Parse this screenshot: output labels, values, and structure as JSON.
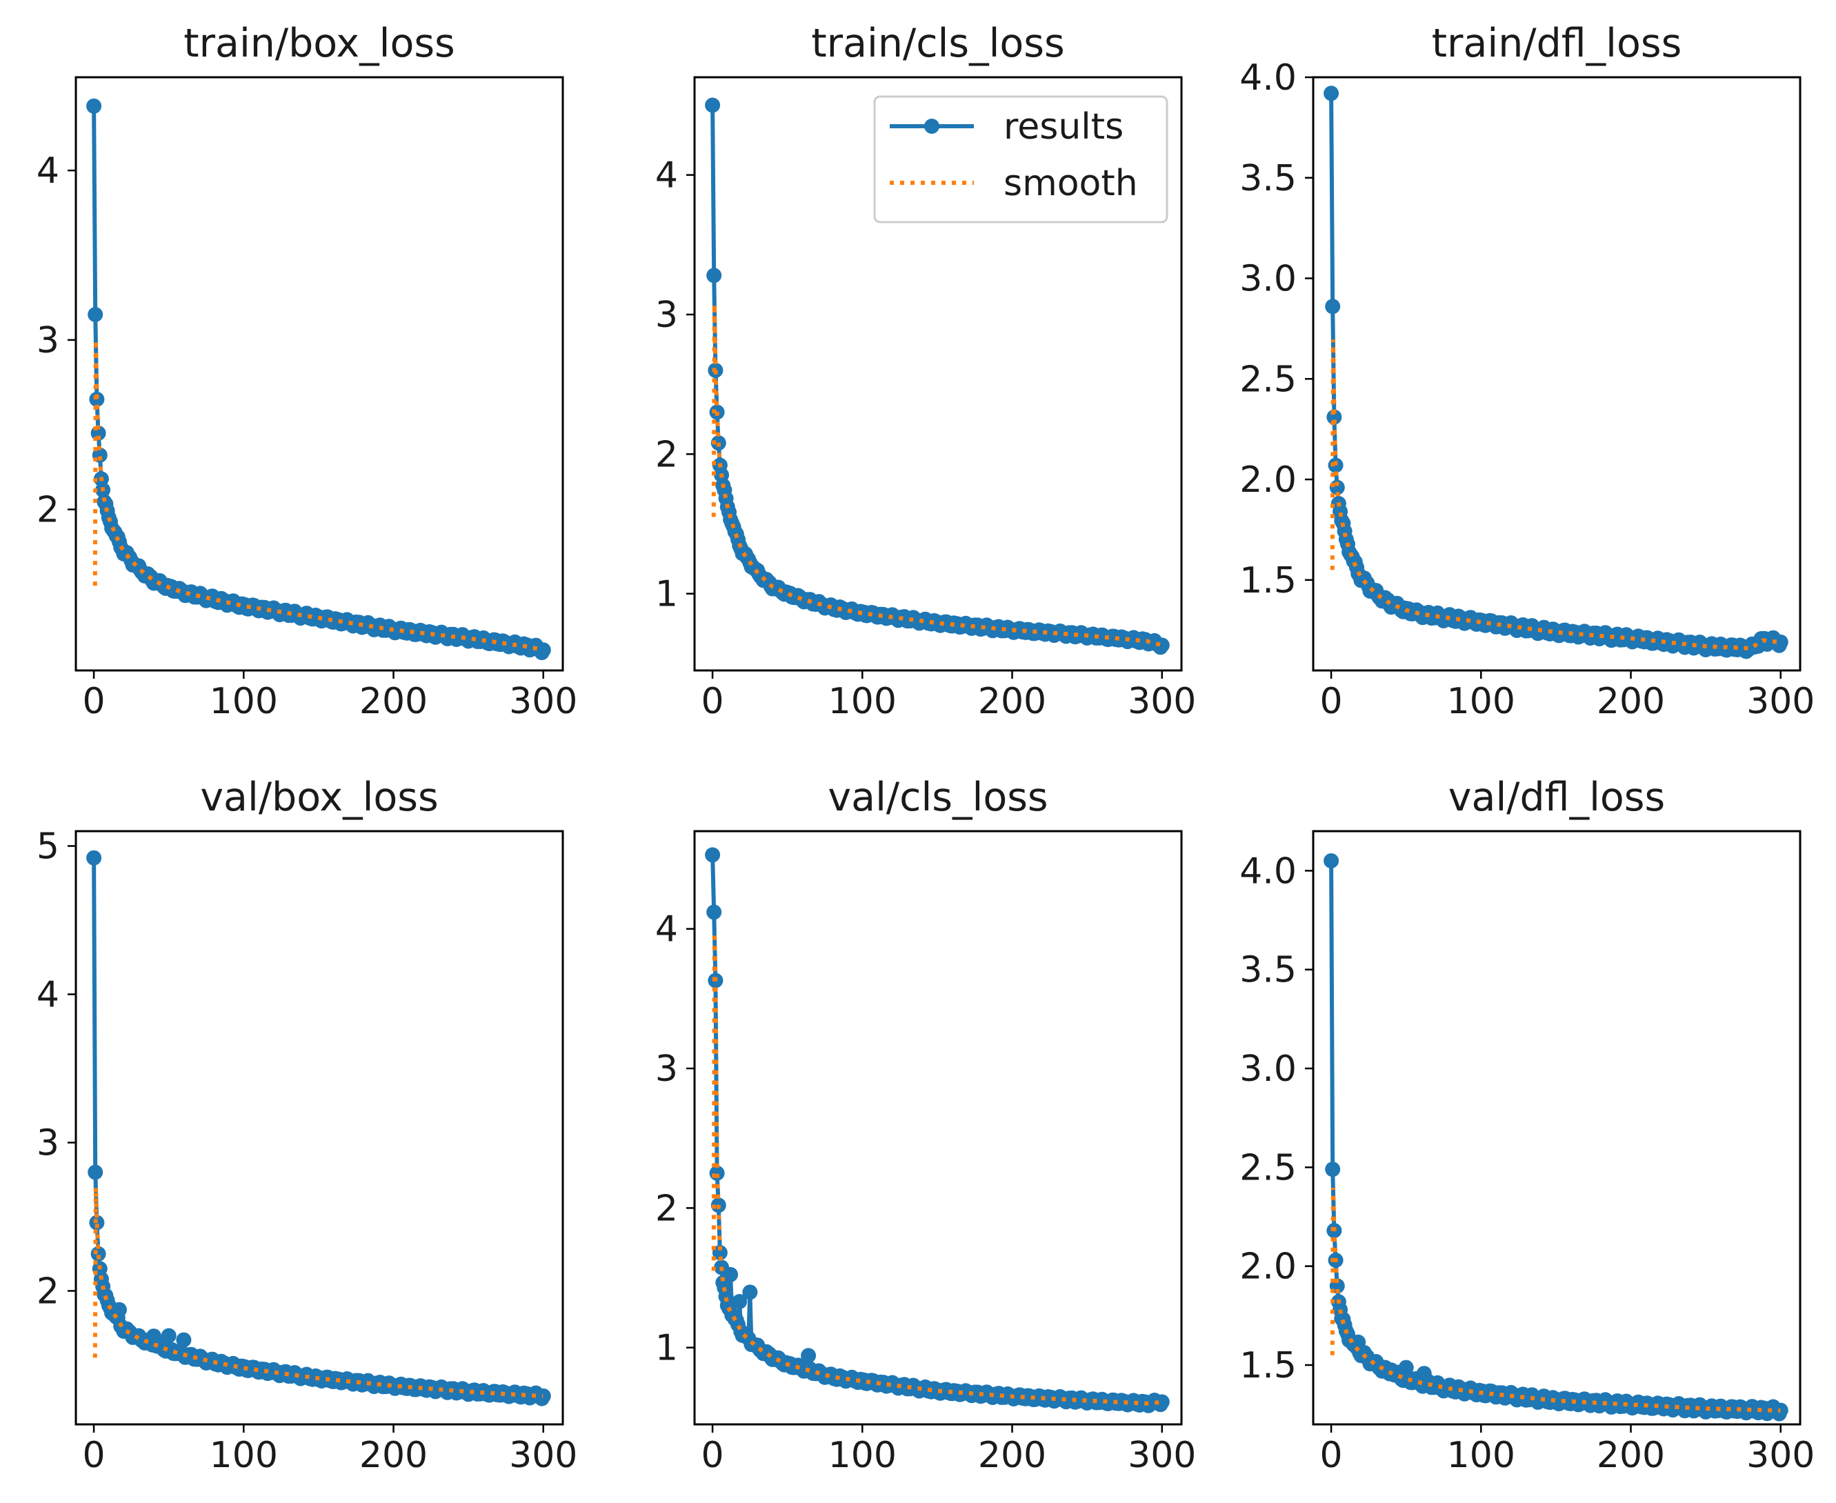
{
  "colors": {
    "results": "#1f77b4",
    "smooth": "#ff7f0e",
    "axis": "#000000",
    "background": "#ffffff"
  },
  "legend": {
    "results_label": "results",
    "smooth_label": "smooth",
    "placement": "upper-right of train/cls_loss"
  },
  "chart_data": [
    {
      "type": "line",
      "title": "train/box_loss",
      "xlabel": "",
      "ylabel": "",
      "xlim": [
        -12,
        313
      ],
      "ylim": [
        1.05,
        4.55
      ],
      "x_ticks": [
        0,
        100,
        200,
        300
      ],
      "x_tick_labels": [
        "0",
        "100",
        "200",
        "300"
      ],
      "y_ticks": [
        2,
        3,
        4
      ],
      "y_tick_labels": [
        "2",
        "3",
        "4"
      ],
      "anchors": [
        [
          0,
          4.38
        ],
        [
          1,
          3.15
        ],
        [
          2,
          2.65
        ],
        [
          3,
          2.45
        ],
        [
          4,
          2.32
        ],
        [
          5,
          2.18
        ],
        [
          7,
          2.05
        ],
        [
          10,
          1.95
        ],
        [
          15,
          1.84
        ],
        [
          20,
          1.75
        ],
        [
          30,
          1.65
        ],
        [
          40,
          1.58
        ],
        [
          50,
          1.54
        ],
        [
          60,
          1.51
        ],
        [
          80,
          1.47
        ],
        [
          100,
          1.43
        ],
        [
          150,
          1.36
        ],
        [
          200,
          1.29
        ],
        [
          250,
          1.24
        ],
        [
          290,
          1.19
        ],
        [
          300,
          1.17
        ]
      ],
      "smooth_start": 1.55
    },
    {
      "type": "line",
      "title": "train/cls_loss",
      "xlabel": "",
      "ylabel": "",
      "xlim": [
        -12,
        313
      ],
      "ylim": [
        0.45,
        4.7
      ],
      "x_ticks": [
        0,
        100,
        200,
        300
      ],
      "x_tick_labels": [
        "0",
        "100",
        "200",
        "300"
      ],
      "y_ticks": [
        1,
        2,
        3,
        4
      ],
      "y_tick_labels": [
        "1",
        "2",
        "3",
        "4"
      ],
      "anchors": [
        [
          0,
          4.5
        ],
        [
          1,
          3.28
        ],
        [
          2,
          2.6
        ],
        [
          3,
          2.3
        ],
        [
          4,
          2.08
        ],
        [
          5,
          1.92
        ],
        [
          7,
          1.78
        ],
        [
          10,
          1.62
        ],
        [
          15,
          1.44
        ],
        [
          20,
          1.3
        ],
        [
          30,
          1.15
        ],
        [
          40,
          1.05
        ],
        [
          50,
          1.0
        ],
        [
          60,
          0.96
        ],
        [
          80,
          0.9
        ],
        [
          100,
          0.86
        ],
        [
          150,
          0.79
        ],
        [
          200,
          0.74
        ],
        [
          250,
          0.7
        ],
        [
          290,
          0.66
        ],
        [
          300,
          0.63
        ]
      ],
      "smooth_start": 1.55
    },
    {
      "type": "line",
      "title": "train/dfl_loss",
      "xlabel": "",
      "ylabel": "",
      "xlim": [
        -12,
        313
      ],
      "ylim": [
        1.05,
        4.0
      ],
      "x_ticks": [
        0,
        100,
        200,
        300
      ],
      "x_tick_labels": [
        "0",
        "100",
        "200",
        "300"
      ],
      "y_ticks": [
        1.5,
        2.0,
        2.5,
        3.0,
        3.5,
        4.0
      ],
      "y_tick_labels": [
        "1.5",
        "2.0",
        "2.5",
        "3.0",
        "3.5",
        "4.0"
      ],
      "anchors": [
        [
          0,
          3.92
        ],
        [
          1,
          2.86
        ],
        [
          2,
          2.31
        ],
        [
          3,
          2.07
        ],
        [
          4,
          1.96
        ],
        [
          5,
          1.88
        ],
        [
          7,
          1.8
        ],
        [
          10,
          1.7
        ],
        [
          15,
          1.59
        ],
        [
          20,
          1.51
        ],
        [
          30,
          1.43
        ],
        [
          40,
          1.38
        ],
        [
          50,
          1.35
        ],
        [
          60,
          1.33
        ],
        [
          80,
          1.31
        ],
        [
          100,
          1.29
        ],
        [
          150,
          1.24
        ],
        [
          200,
          1.21
        ],
        [
          250,
          1.17
        ],
        [
          280,
          1.16
        ],
        [
          288,
          1.2
        ],
        [
          300,
          1.19
        ]
      ],
      "smooth_start": 1.55
    },
    {
      "type": "line",
      "title": "val/box_loss",
      "xlabel": "",
      "ylabel": "",
      "xlim": [
        -12,
        313
      ],
      "ylim": [
        1.1,
        5.1
      ],
      "x_ticks": [
        0,
        100,
        200,
        300
      ],
      "x_tick_labels": [
        "0",
        "100",
        "200",
        "300"
      ],
      "y_ticks": [
        2,
        3,
        4,
        5
      ],
      "y_tick_labels": [
        "2",
        "3",
        "4",
        "5"
      ],
      "anchors": [
        [
          0,
          4.92
        ],
        [
          1,
          2.8
        ],
        [
          2,
          2.46
        ],
        [
          3,
          2.25
        ],
        [
          4,
          2.15
        ],
        [
          5,
          2.08
        ],
        [
          7,
          1.98
        ],
        [
          10,
          1.9
        ],
        [
          15,
          1.82
        ],
        [
          20,
          1.74
        ],
        [
          30,
          1.68
        ],
        [
          40,
          1.64
        ],
        [
          50,
          1.6
        ],
        [
          60,
          1.57
        ],
        [
          80,
          1.52
        ],
        [
          100,
          1.48
        ],
        [
          150,
          1.41
        ],
        [
          200,
          1.36
        ],
        [
          250,
          1.32
        ],
        [
          300,
          1.29
        ]
      ],
      "spikes": [
        [
          17,
          0.08
        ],
        [
          40,
          0.07
        ],
        [
          50,
          0.09
        ],
        [
          60,
          0.1
        ]
      ],
      "smooth_start": 1.55
    },
    {
      "type": "line",
      "title": "val/cls_loss",
      "xlabel": "",
      "ylabel": "",
      "xlim": [
        -12,
        313
      ],
      "ylim": [
        0.45,
        4.7
      ],
      "x_ticks": [
        0,
        100,
        200,
        300
      ],
      "x_tick_labels": [
        "0",
        "100",
        "200",
        "300"
      ],
      "y_ticks": [
        1,
        2,
        3,
        4
      ],
      "y_tick_labels": [
        "1",
        "2",
        "3",
        "4"
      ],
      "anchors": [
        [
          0,
          4.53
        ],
        [
          1,
          4.12
        ],
        [
          2,
          3.63
        ],
        [
          3,
          2.25
        ],
        [
          4,
          2.02
        ],
        [
          5,
          1.68
        ],
        [
          7,
          1.47
        ],
        [
          10,
          1.3
        ],
        [
          15,
          1.2
        ],
        [
          20,
          1.1
        ],
        [
          30,
          1.0
        ],
        [
          40,
          0.93
        ],
        [
          50,
          0.88
        ],
        [
          60,
          0.85
        ],
        [
          80,
          0.79
        ],
        [
          100,
          0.76
        ],
        [
          150,
          0.69
        ],
        [
          200,
          0.65
        ],
        [
          250,
          0.62
        ],
        [
          290,
          0.6
        ],
        [
          300,
          0.61
        ]
      ],
      "spikes": [
        [
          12,
          0.28
        ],
        [
          18,
          0.2
        ],
        [
          25,
          0.35
        ],
        [
          64,
          0.1
        ]
      ],
      "smooth_start": 1.55
    },
    {
      "type": "line",
      "title": "val/dfl_loss",
      "xlabel": "",
      "ylabel": "",
      "xlim": [
        -12,
        313
      ],
      "ylim": [
        1.2,
        4.2
      ],
      "x_ticks": [
        0,
        100,
        200,
        300
      ],
      "x_tick_labels": [
        "0",
        "100",
        "200",
        "300"
      ],
      "y_ticks": [
        1.5,
        2.0,
        2.5,
        3.0,
        3.5,
        4.0
      ],
      "y_tick_labels": [
        "1.5",
        "2.0",
        "2.5",
        "3.0",
        "3.5",
        "4.0"
      ],
      "anchors": [
        [
          0,
          4.05
        ],
        [
          1,
          2.49
        ],
        [
          2,
          2.18
        ],
        [
          3,
          2.03
        ],
        [
          4,
          1.9
        ],
        [
          5,
          1.82
        ],
        [
          7,
          1.74
        ],
        [
          10,
          1.67
        ],
        [
          15,
          1.6
        ],
        [
          20,
          1.56
        ],
        [
          30,
          1.5
        ],
        [
          40,
          1.46
        ],
        [
          50,
          1.43
        ],
        [
          60,
          1.41
        ],
        [
          80,
          1.38
        ],
        [
          100,
          1.36
        ],
        [
          150,
          1.32
        ],
        [
          200,
          1.3
        ],
        [
          250,
          1.28
        ],
        [
          300,
          1.27
        ]
      ],
      "spikes": [
        [
          18,
          0.05
        ],
        [
          40,
          0.03
        ],
        [
          50,
          0.05
        ],
        [
          62,
          0.06
        ]
      ],
      "smooth_start": 1.55
    }
  ]
}
